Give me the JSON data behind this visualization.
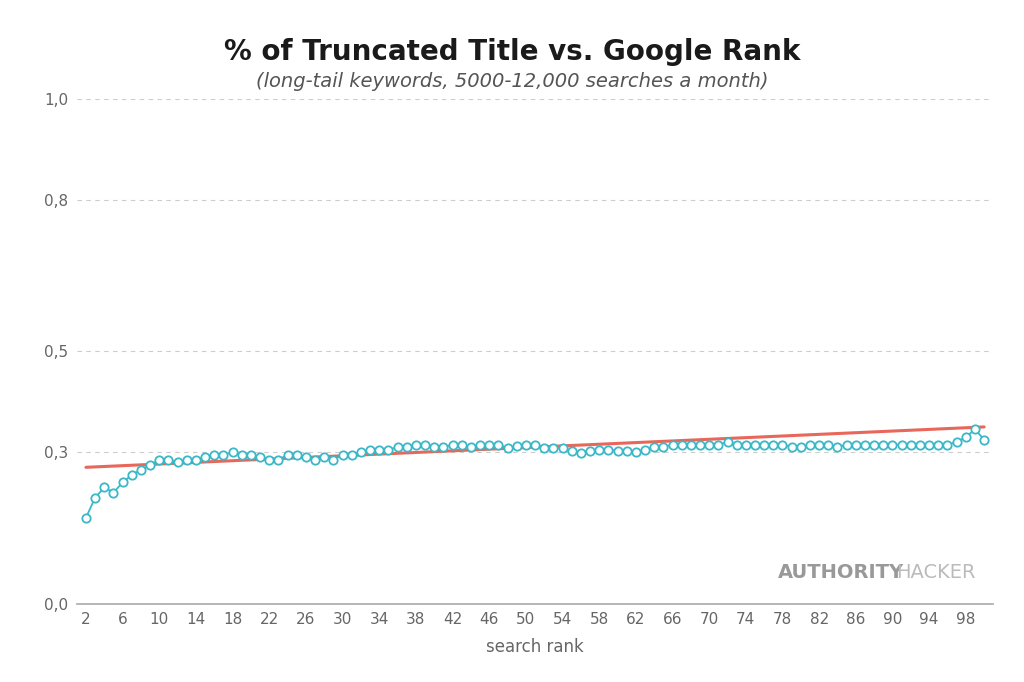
{
  "title": "% of Truncated Title vs. Google Rank",
  "subtitle": "(long-tail keywords, 5000-12,000 searches a month)",
  "xlabel": "search rank",
  "background_color": "#ffffff",
  "line_color": "#3ab8c8",
  "trend_color": "#e8675a",
  "marker_facecolor": "#ffffff",
  "marker_edgecolor": "#3ab8c8",
  "x_values": [
    2,
    3,
    4,
    5,
    6,
    7,
    8,
    9,
    10,
    11,
    12,
    13,
    14,
    15,
    16,
    17,
    18,
    19,
    20,
    21,
    22,
    23,
    24,
    25,
    26,
    27,
    28,
    29,
    30,
    31,
    32,
    33,
    34,
    35,
    36,
    37,
    38,
    39,
    40,
    41,
    42,
    43,
    44,
    45,
    46,
    47,
    48,
    49,
    50,
    51,
    52,
    53,
    54,
    55,
    56,
    57,
    58,
    59,
    60,
    61,
    62,
    63,
    64,
    65,
    66,
    67,
    68,
    69,
    70,
    71,
    72,
    73,
    74,
    75,
    76,
    77,
    78,
    79,
    80,
    81,
    82,
    83,
    84,
    85,
    86,
    87,
    88,
    89,
    90,
    91,
    92,
    93,
    94,
    95,
    96,
    97,
    98,
    99,
    100
  ],
  "y_values": [
    0.17,
    0.21,
    0.23,
    0.22,
    0.24,
    0.255,
    0.265,
    0.275,
    0.285,
    0.285,
    0.28,
    0.285,
    0.285,
    0.29,
    0.295,
    0.295,
    0.3,
    0.295,
    0.295,
    0.29,
    0.285,
    0.285,
    0.295,
    0.295,
    0.29,
    0.285,
    0.29,
    0.285,
    0.295,
    0.295,
    0.3,
    0.305,
    0.305,
    0.305,
    0.31,
    0.31,
    0.315,
    0.315,
    0.31,
    0.31,
    0.315,
    0.315,
    0.31,
    0.315,
    0.315,
    0.315,
    0.308,
    0.312,
    0.315,
    0.315,
    0.308,
    0.308,
    0.308,
    0.302,
    0.298,
    0.303,
    0.305,
    0.305,
    0.303,
    0.303,
    0.3,
    0.305,
    0.31,
    0.31,
    0.315,
    0.315,
    0.315,
    0.315,
    0.315,
    0.315,
    0.32,
    0.315,
    0.315,
    0.315,
    0.315,
    0.315,
    0.315,
    0.31,
    0.31,
    0.315,
    0.315,
    0.315,
    0.31,
    0.315,
    0.315,
    0.315,
    0.315,
    0.315,
    0.315,
    0.315,
    0.315,
    0.315,
    0.315,
    0.315,
    0.315,
    0.32,
    0.33,
    0.345,
    0.325
  ],
  "ylim": [
    0.0,
    1.0
  ],
  "xlim": [
    1,
    101
  ],
  "ytick_positions": [
    0.0,
    0.3,
    0.5,
    0.8,
    1.0
  ],
  "ytick_labels": [
    "0,0",
    "0,3",
    "0,5",
    "0,8",
    "1,0"
  ],
  "xtick_positions": [
    2,
    6,
    10,
    14,
    18,
    22,
    26,
    30,
    34,
    38,
    42,
    46,
    50,
    54,
    58,
    62,
    66,
    70,
    74,
    78,
    82,
    86,
    90,
    94,
    98
  ],
  "xtick_labels": [
    "2",
    "6",
    "10",
    "14",
    "18",
    "22",
    "26",
    "30",
    "34",
    "38",
    "42",
    "46",
    "50",
    "54",
    "58",
    "62",
    "66",
    "70",
    "74",
    "78",
    "82",
    "86",
    "90",
    "94",
    "98"
  ],
  "watermark_bold": "AUTHORITY",
  "watermark_normal": "HACKER",
  "watermark_bold_color": "#999999",
  "watermark_normal_color": "#bbbbbb",
  "title_fontsize": 20,
  "subtitle_fontsize": 14,
  "axis_label_fontsize": 12,
  "tick_fontsize": 11,
  "trend_x": [
    2,
    100
  ],
  "trend_y": [
    0.27,
    0.35
  ],
  "grid_color": "#cccccc",
  "spine_color": "#aaaaaa",
  "tick_color": "#666666"
}
